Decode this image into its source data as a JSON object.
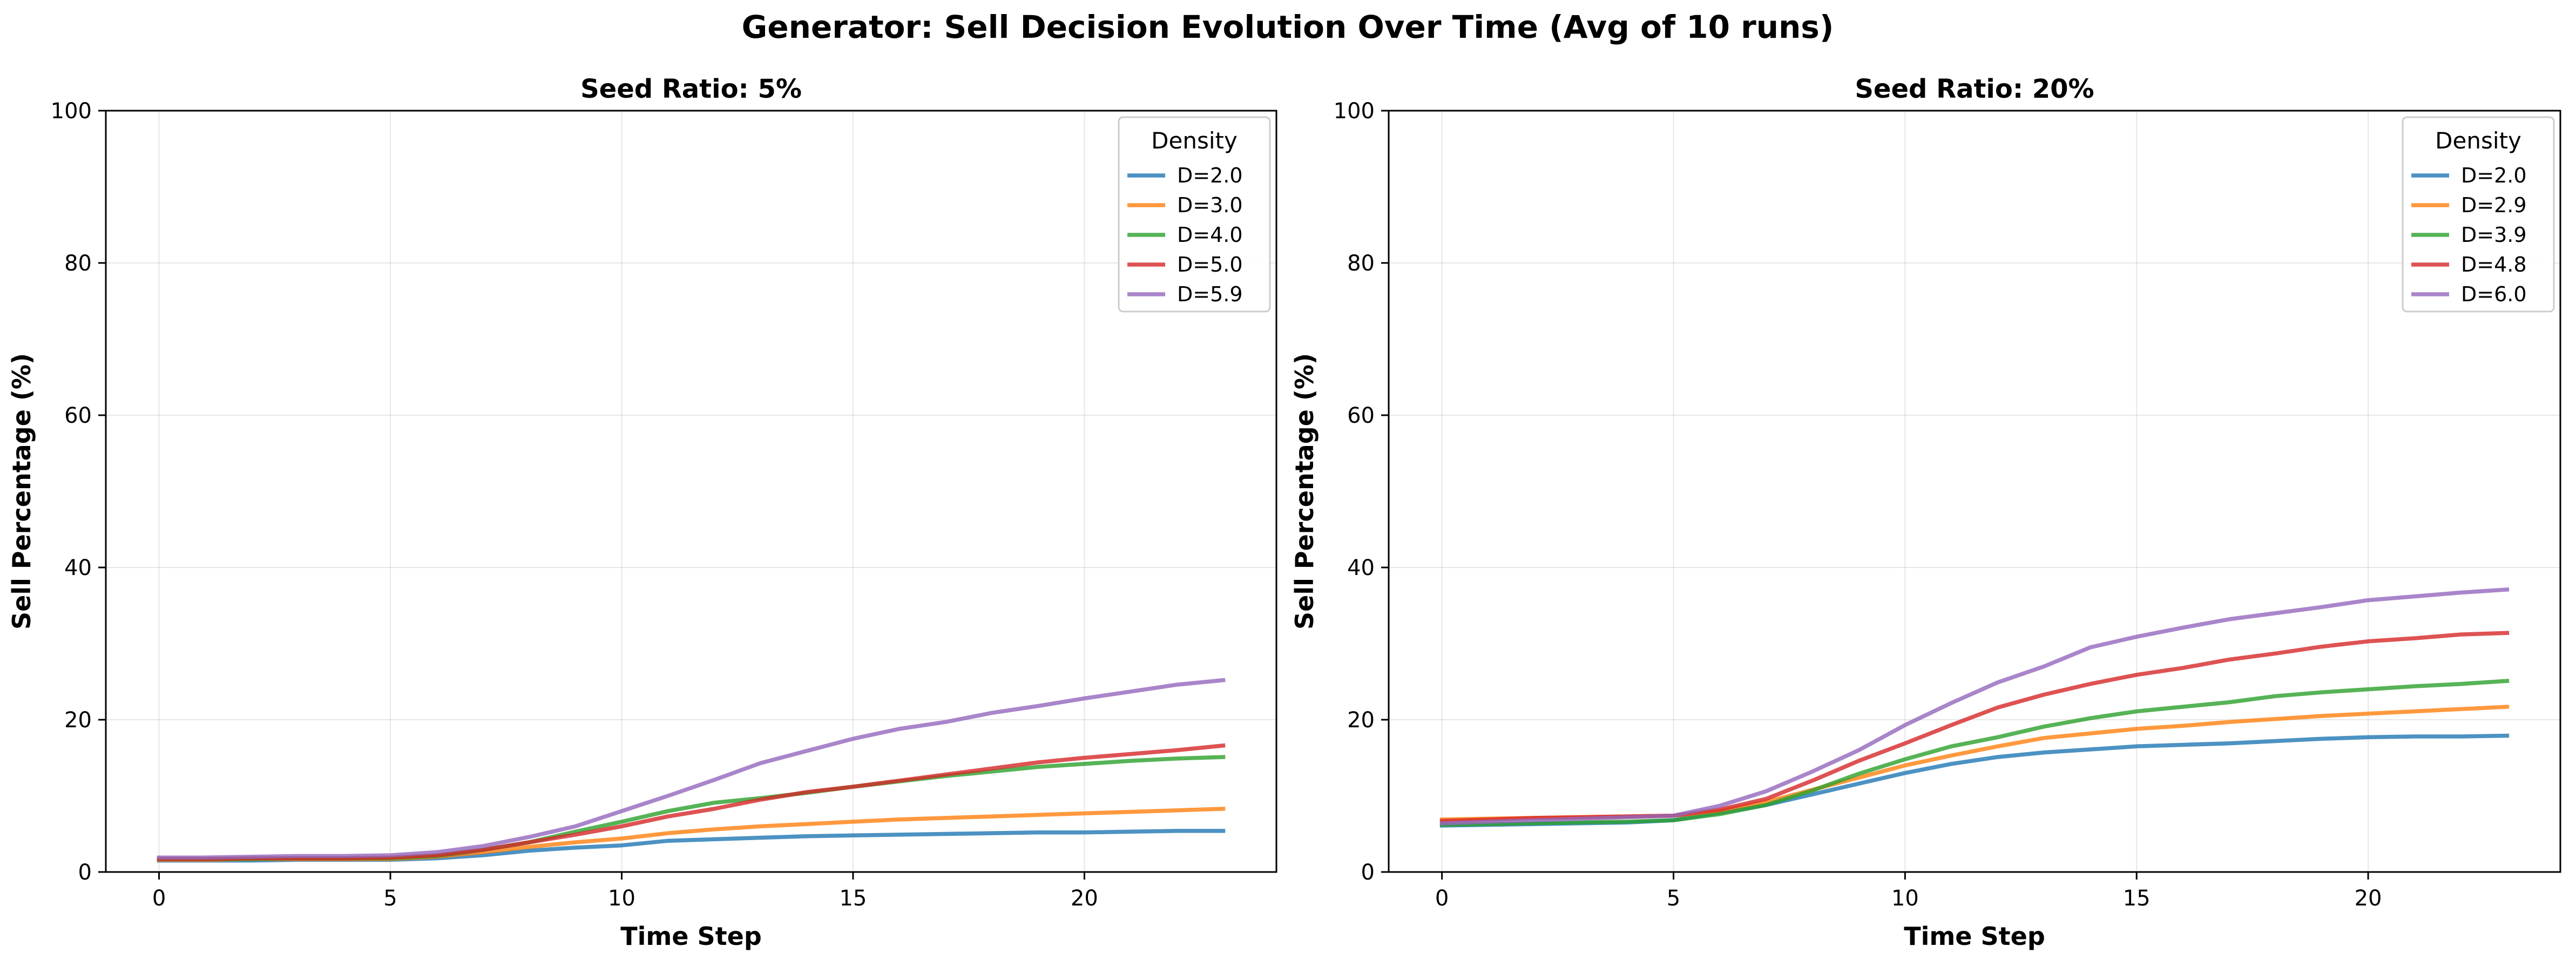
{
  "figure": {
    "suptitle": "Generator: Sell Decision Evolution Over Time (Avg of 10 runs)"
  },
  "chart_data": [
    {
      "type": "line",
      "title": "Seed Ratio: 5%",
      "xlabel": "Time Step",
      "ylabel": "Sell Percentage (%)",
      "xlim": [
        -1.15,
        24.15
      ],
      "ylim": [
        0,
        100
      ],
      "xticks": [
        0,
        5,
        10,
        15,
        20
      ],
      "yticks": [
        0,
        20,
        40,
        60,
        80,
        100
      ],
      "grid": true,
      "legend": {
        "title": "Density",
        "placement": "upper right"
      },
      "x": [
        0,
        1,
        2,
        3,
        4,
        5,
        6,
        7,
        8,
        9,
        10,
        11,
        12,
        13,
        14,
        15,
        16,
        17,
        18,
        19,
        20,
        21,
        22,
        23
      ],
      "series": [
        {
          "name": "D=2.0",
          "color": "#1f77b4",
          "values": [
            1.5,
            1.5,
            1.5,
            1.6,
            1.6,
            1.6,
            1.8,
            2.2,
            2.8,
            3.2,
            3.5,
            4.1,
            4.3,
            4.5,
            4.7,
            4.8,
            4.9,
            5.0,
            5.1,
            5.2,
            5.2,
            5.3,
            5.4,
            5.4
          ]
        },
        {
          "name": "D=3.0",
          "color": "#ff7f0e",
          "values": [
            1.6,
            1.6,
            1.7,
            1.7,
            1.7,
            1.7,
            2.0,
            2.6,
            3.3,
            3.9,
            4.4,
            5.1,
            5.6,
            6.0,
            6.3,
            6.6,
            6.9,
            7.1,
            7.3,
            7.5,
            7.7,
            7.9,
            8.1,
            8.3
          ]
        },
        {
          "name": "D=4.0",
          "color": "#2ca02c",
          "values": [
            1.7,
            1.7,
            1.7,
            1.8,
            1.8,
            1.8,
            2.1,
            2.9,
            3.9,
            5.3,
            6.6,
            8.0,
            9.1,
            9.7,
            10.4,
            11.2,
            11.9,
            12.6,
            13.2,
            13.8,
            14.2,
            14.6,
            14.9,
            15.1
          ]
        },
        {
          "name": "D=5.0",
          "color": "#d62728",
          "values": [
            1.7,
            1.7,
            1.8,
            1.8,
            1.8,
            1.9,
            2.2,
            2.9,
            3.9,
            4.9,
            6.0,
            7.3,
            8.3,
            9.5,
            10.5,
            11.2,
            12.0,
            12.8,
            13.6,
            14.4,
            15.0,
            15.5,
            16.0,
            16.6
          ]
        },
        {
          "name": "D=5.9",
          "color": "#9467bd",
          "values": [
            1.9,
            1.9,
            2.0,
            2.1,
            2.1,
            2.2,
            2.6,
            3.4,
            4.6,
            6.0,
            8.0,
            10.0,
            12.1,
            14.3,
            15.9,
            17.5,
            18.8,
            19.7,
            20.9,
            21.8,
            22.8,
            23.7,
            24.6,
            25.2
          ]
        }
      ]
    },
    {
      "type": "line",
      "title": "Seed Ratio: 20%",
      "xlabel": "Time Step",
      "ylabel": "Sell Percentage (%)",
      "xlim": [
        -1.15,
        24.15
      ],
      "ylim": [
        0,
        100
      ],
      "xticks": [
        0,
        5,
        10,
        15,
        20
      ],
      "yticks": [
        0,
        20,
        40,
        60,
        80,
        100
      ],
      "grid": true,
      "legend": {
        "title": "Density",
        "placement": "upper right"
      },
      "x": [
        0,
        1,
        2,
        3,
        4,
        5,
        6,
        7,
        8,
        9,
        10,
        11,
        12,
        13,
        14,
        15,
        16,
        17,
        18,
        19,
        20,
        21,
        22,
        23
      ],
      "series": [
        {
          "name": "D=2.0",
          "color": "#1f77b4",
          "values": [
            6.1,
            6.2,
            6.3,
            6.4,
            6.5,
            6.8,
            7.8,
            8.8,
            10.2,
            11.6,
            13.0,
            14.2,
            15.1,
            15.7,
            16.1,
            16.5,
            16.7,
            16.9,
            17.2,
            17.5,
            17.7,
            17.8,
            17.8,
            17.9
          ]
        },
        {
          "name": "D=2.9",
          "color": "#ff7f0e",
          "values": [
            6.9,
            7.0,
            7.1,
            7.2,
            7.3,
            7.4,
            8.0,
            9.2,
            10.8,
            12.4,
            14.0,
            15.3,
            16.5,
            17.6,
            18.2,
            18.8,
            19.2,
            19.7,
            20.1,
            20.5,
            20.8,
            21.1,
            21.4,
            21.7
          ]
        },
        {
          "name": "D=3.9",
          "color": "#2ca02c",
          "values": [
            6.2,
            6.3,
            6.4,
            6.5,
            6.6,
            6.8,
            7.6,
            8.8,
            10.7,
            12.9,
            14.8,
            16.5,
            17.7,
            19.1,
            20.2,
            21.1,
            21.7,
            22.3,
            23.1,
            23.6,
            24.0,
            24.4,
            24.7,
            25.1
          ]
        },
        {
          "name": "D=4.8",
          "color": "#d62728",
          "values": [
            6.7,
            6.9,
            7.1,
            7.2,
            7.3,
            7.4,
            8.2,
            9.6,
            12.0,
            14.6,
            16.9,
            19.3,
            21.6,
            23.3,
            24.7,
            25.9,
            26.8,
            27.9,
            28.7,
            29.6,
            30.3,
            30.7,
            31.2,
            31.4
          ]
        },
        {
          "name": "D=6.0",
          "color": "#9467bd",
          "values": [
            6.4,
            6.6,
            6.8,
            7.0,
            7.2,
            7.4,
            8.7,
            10.6,
            13.2,
            16.0,
            19.3,
            22.2,
            24.9,
            27.0,
            29.5,
            30.9,
            32.1,
            33.2,
            34.0,
            34.8,
            35.7,
            36.2,
            36.7,
            37.1
          ]
        }
      ]
    }
  ]
}
